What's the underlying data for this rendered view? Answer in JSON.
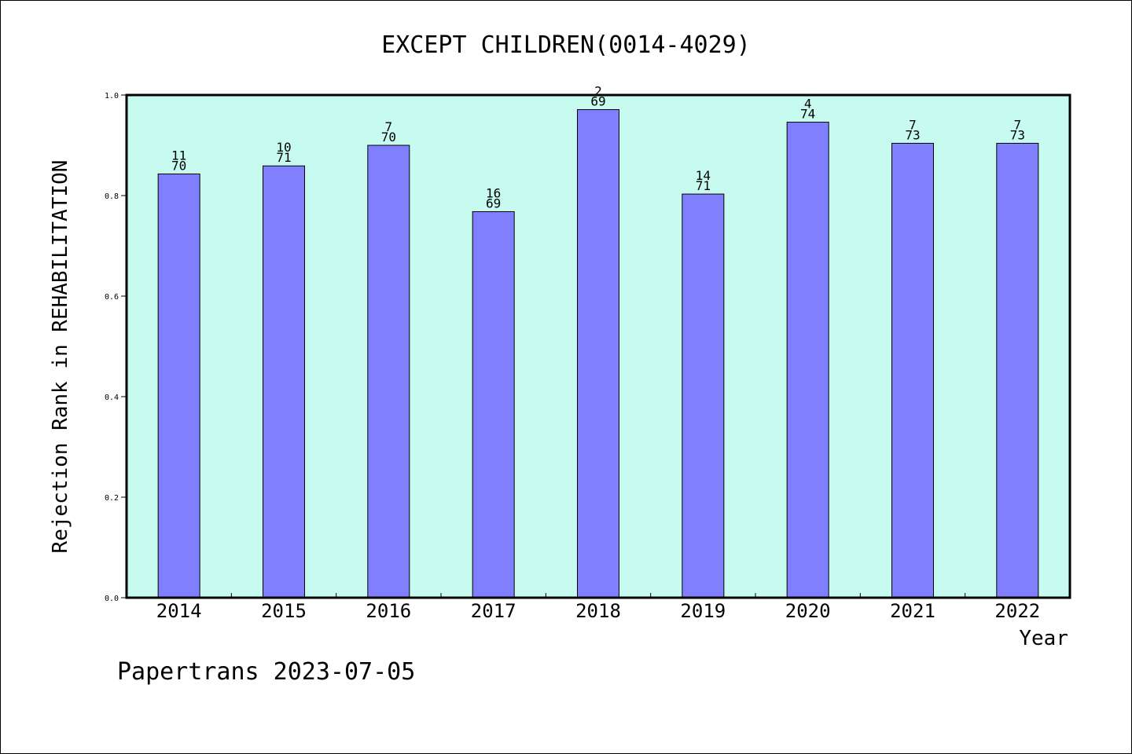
{
  "chart_data": {
    "type": "bar",
    "title": "EXCEPT CHILDREN(0014-4029)",
    "xlabel": "Year",
    "ylabel": "Rejection Rank in REHABILITATION",
    "ylim": [
      0,
      1.0
    ],
    "yticks": [
      "0.0",
      "0.2",
      "0.4",
      "0.6",
      "0.8",
      "1.0"
    ],
    "categories": [
      "2014",
      "2015",
      "2016",
      "2017",
      "2018",
      "2019",
      "2020",
      "2021",
      "2022"
    ],
    "values": [
      0.843,
      0.859,
      0.9,
      0.768,
      0.971,
      0.803,
      0.946,
      0.904,
      0.904
    ],
    "rank": [
      "11",
      "10",
      "7",
      "16",
      "2",
      "14",
      "4",
      "7",
      "7"
    ],
    "total": [
      "70",
      "71",
      "70",
      "69",
      "69",
      "71",
      "74",
      "73",
      "73"
    ],
    "grid": false,
    "legend": "none"
  },
  "footer": "Papertrans 2023-07-05",
  "colors": {
    "plot_background": "#c8fbf0",
    "bar_fill": "#8080ff",
    "bar_stroke": "#000000"
  }
}
